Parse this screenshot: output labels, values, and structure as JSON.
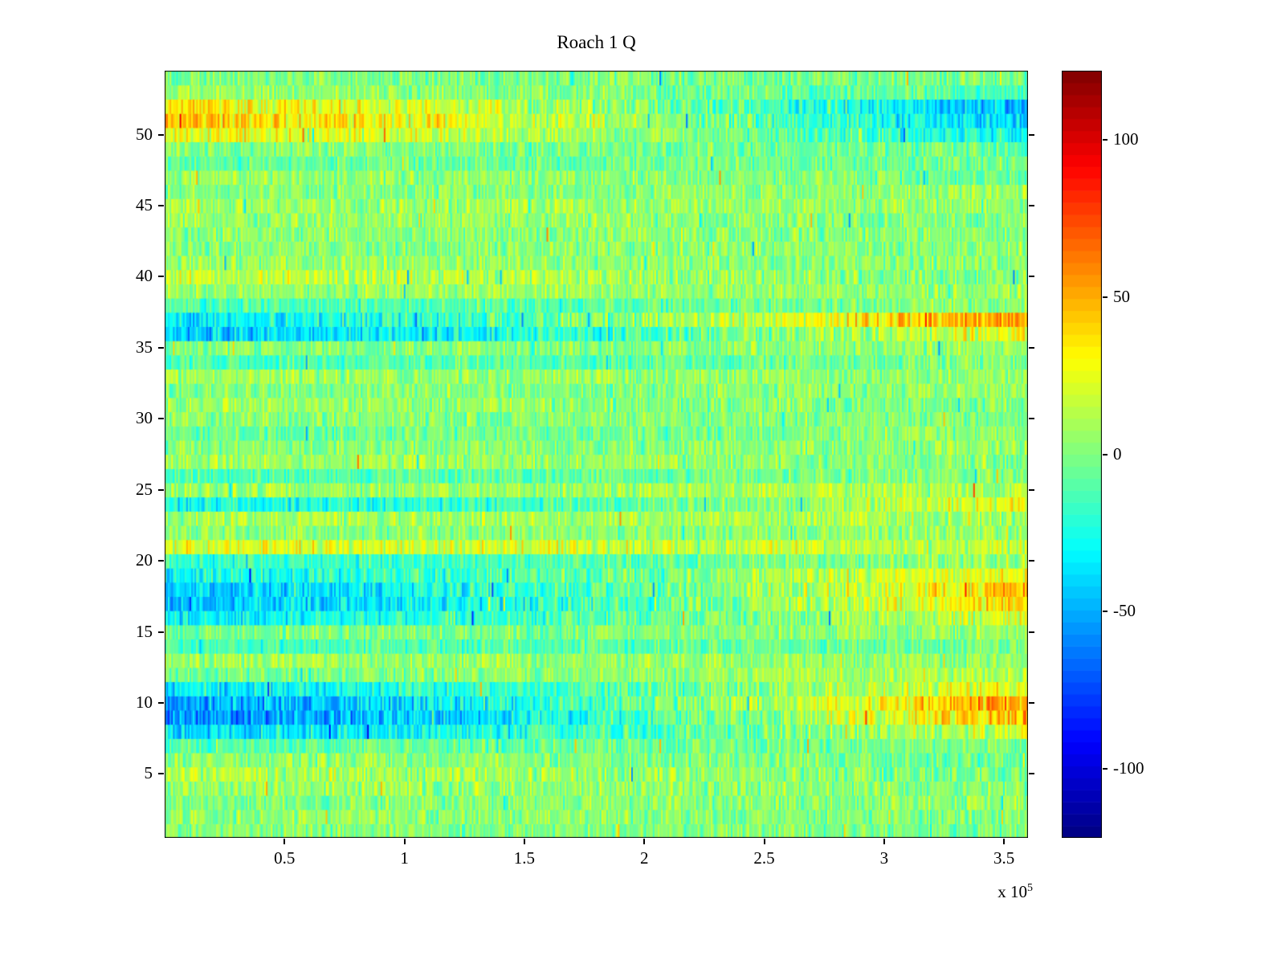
{
  "chart_data": {
    "type": "heatmap",
    "title": "Roach 1 Q",
    "colormap": "jet",
    "grid": false,
    "x": {
      "min": 0,
      "max": 360000,
      "ticks": [
        50000,
        100000,
        150000,
        200000,
        250000,
        300000,
        350000
      ],
      "tick_labels": [
        "0.5",
        "1",
        "1.5",
        "2",
        "2.5",
        "3",
        "3.5"
      ],
      "exponent_prefix": "x 10",
      "exponent": "5"
    },
    "y": {
      "min": 0.5,
      "max": 54.5,
      "rows": 54,
      "ticks": [
        5,
        10,
        15,
        20,
        25,
        30,
        35,
        40,
        45,
        50
      ]
    },
    "colorbar": {
      "min": -122,
      "max": 122,
      "ticks": [
        100,
        50,
        0,
        -50,
        -100
      ],
      "tick_labels": [
        "100",
        "50",
        "0",
        "-50",
        "-100"
      ],
      "levels": 64,
      "position": "right"
    },
    "row_profiles_bottom_to_top_note": "per image row y=1..54: [value at left edge, value at right edge, noise amplitude], colorbar units",
    "rows": [
      [
        2,
        -2,
        24
      ],
      [
        4,
        0,
        24
      ],
      [
        0,
        4,
        24
      ],
      [
        6,
        2,
        26
      ],
      [
        10,
        -2,
        28
      ],
      [
        4,
        -6,
        24
      ],
      [
        -10,
        2,
        24
      ],
      [
        -38,
        22,
        30
      ],
      [
        -58,
        48,
        32
      ],
      [
        -52,
        55,
        32
      ],
      [
        -32,
        28,
        28
      ],
      [
        -2,
        12,
        24
      ],
      [
        6,
        4,
        24
      ],
      [
        -14,
        0,
        24
      ],
      [
        -2,
        6,
        24
      ],
      [
        -30,
        22,
        28
      ],
      [
        -46,
        40,
        30
      ],
      [
        -42,
        44,
        30
      ],
      [
        -26,
        30,
        28
      ],
      [
        -20,
        6,
        26
      ],
      [
        22,
        12,
        28
      ],
      [
        2,
        4,
        24
      ],
      [
        10,
        8,
        25
      ],
      [
        -28,
        26,
        28
      ],
      [
        6,
        12,
        25
      ],
      [
        -12,
        4,
        24
      ],
      [
        8,
        -2,
        24
      ],
      [
        0,
        6,
        24
      ],
      [
        -6,
        4,
        24
      ],
      [
        2,
        0,
        24
      ],
      [
        6,
        -2,
        24
      ],
      [
        0,
        6,
        24
      ],
      [
        6,
        4,
        24
      ],
      [
        -12,
        0,
        24
      ],
      [
        0,
        6,
        24
      ],
      [
        -42,
        28,
        30
      ],
      [
        -32,
        55,
        32
      ],
      [
        -14,
        4,
        24
      ],
      [
        6,
        6,
        24
      ],
      [
        16,
        -2,
        28
      ],
      [
        6,
        0,
        24
      ],
      [
        0,
        6,
        24
      ],
      [
        2,
        2,
        24
      ],
      [
        6,
        0,
        24
      ],
      [
        6,
        6,
        24
      ],
      [
        0,
        6,
        24
      ],
      [
        6,
        -4,
        24
      ],
      [
        -6,
        -2,
        24
      ],
      [
        2,
        -6,
        24
      ],
      [
        26,
        -30,
        28
      ],
      [
        42,
        -45,
        30
      ],
      [
        32,
        -48,
        30
      ],
      [
        6,
        -12,
        24
      ],
      [
        0,
        -2,
        24
      ]
    ]
  }
}
